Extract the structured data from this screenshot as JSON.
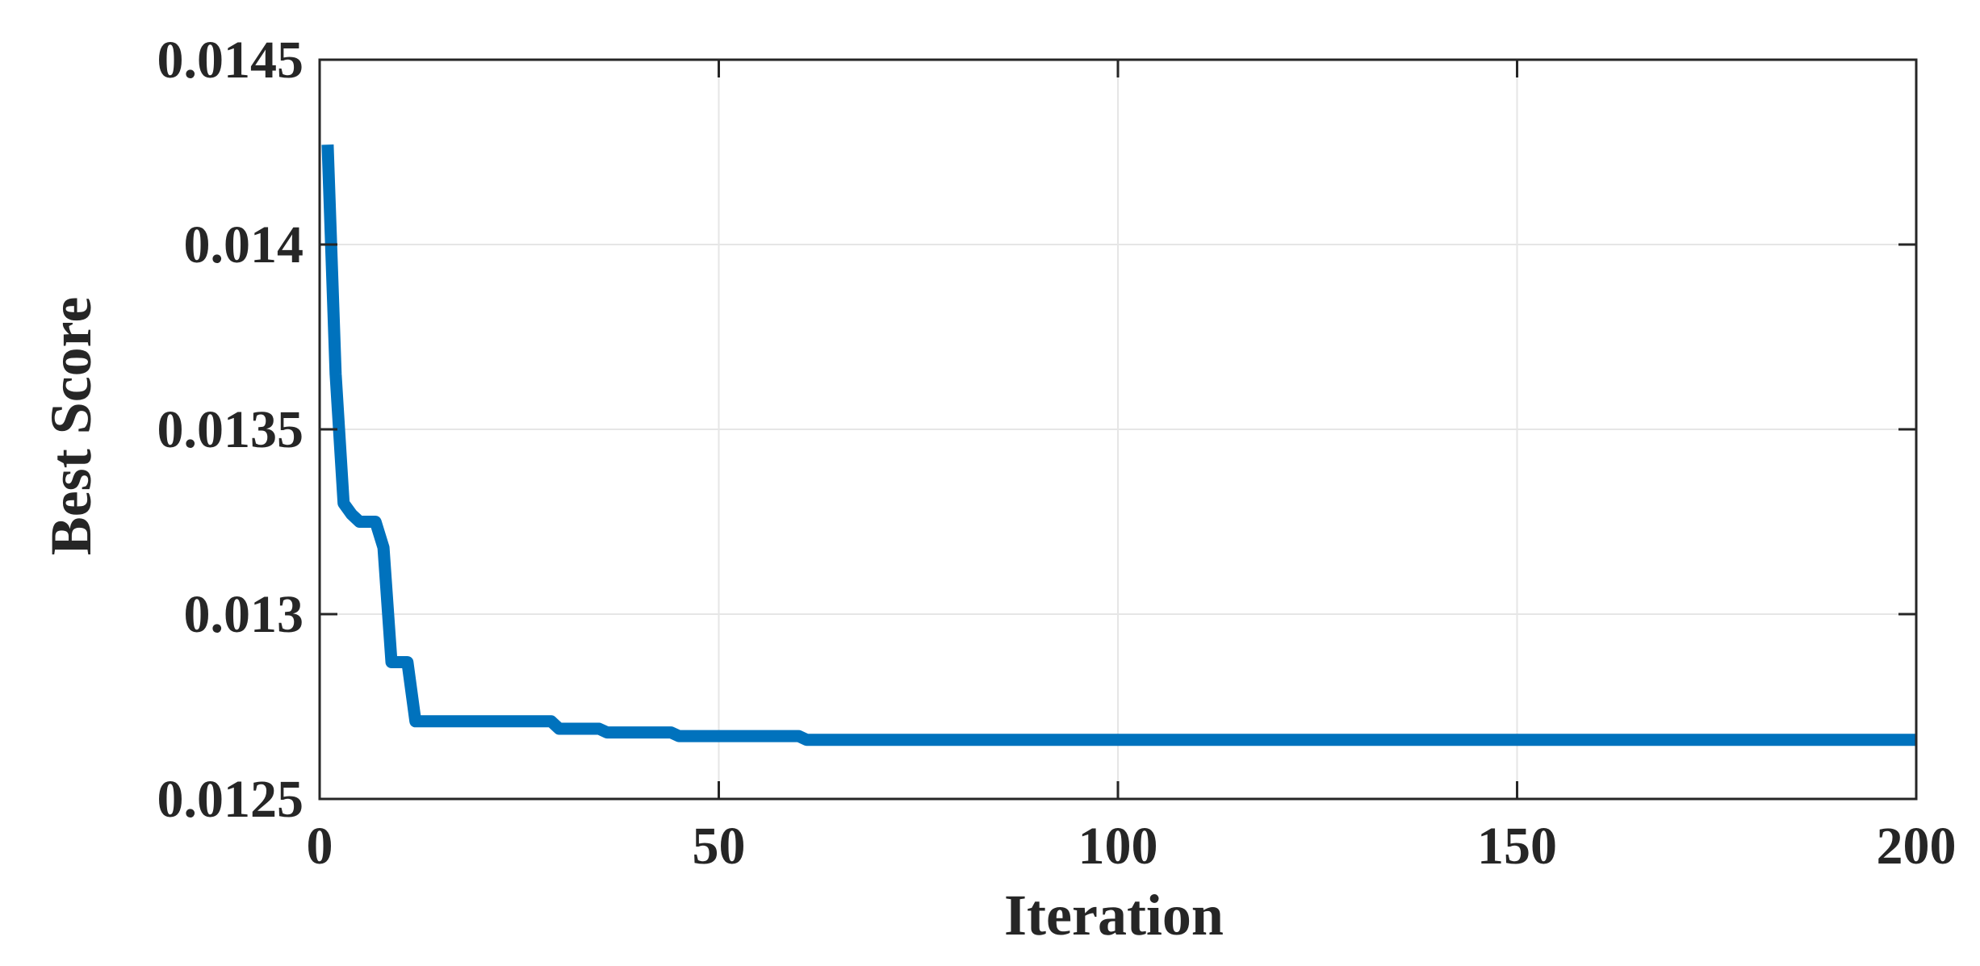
{
  "chart_data": {
    "type": "line",
    "title": "",
    "xlabel": "Iteration",
    "ylabel": "Best Score",
    "xlim": [
      0,
      200
    ],
    "ylim": [
      0.0125,
      0.0145
    ],
    "xticks": [
      0,
      50,
      100,
      150,
      200
    ],
    "xtick_labels": [
      "0",
      "50",
      "100",
      "150",
      "200"
    ],
    "yticks": [
      0.0125,
      0.013,
      0.0135,
      0.014,
      0.0145
    ],
    "ytick_labels": [
      "0.0125",
      "0.013",
      "0.0135",
      "0.014",
      "0.0145"
    ],
    "grid": true,
    "series": [
      {
        "color": "#0072BD",
        "x": [
          1,
          2,
          3,
          4,
          5,
          6,
          7,
          8,
          9,
          10,
          11,
          12,
          13,
          14,
          20,
          25,
          29,
          30,
          31,
          35,
          36,
          40,
          43,
          44,
          45,
          60,
          61,
          100,
          133,
          134,
          200
        ],
        "y": [
          0.01427,
          0.01365,
          0.0133,
          0.01327,
          0.01325,
          0.01325,
          0.01325,
          0.01318,
          0.01287,
          0.01287,
          0.01287,
          0.01271,
          0.01271,
          0.01271,
          0.01271,
          0.01271,
          0.01271,
          0.01269,
          0.01269,
          0.01269,
          0.01268,
          0.01268,
          0.01268,
          0.01268,
          0.01267,
          0.01267,
          0.01266,
          0.01266,
          0.01266,
          0.01266,
          0.01266
        ]
      }
    ]
  }
}
